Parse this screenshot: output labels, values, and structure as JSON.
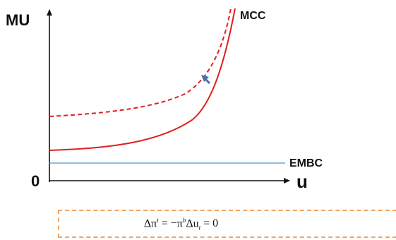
{
  "diagram": {
    "y_axis_label": "MU",
    "x_axis_label": "u",
    "origin_label": "0",
    "curves": {
      "mcc": {
        "label": "MCC",
        "color": "#e02020",
        "style": "solid"
      },
      "mcc_shifted": {
        "label": "",
        "color": "#e02020",
        "style": "dashed"
      },
      "embc": {
        "label": "EMBC",
        "color": "#6fa8dc",
        "style": "solid"
      }
    },
    "shift_arrow": {
      "color": "#4a6fa5"
    },
    "formula": {
      "lhs_symbol": "Δπ",
      "lhs_sup": "t",
      "eq1": " = −",
      "rhs_symbol": "π",
      "rhs_sup": "b",
      "rhs_delta": "Δu",
      "rhs_sub": "t",
      "eq2": " = 0",
      "box_color": "#f4a460"
    }
  }
}
